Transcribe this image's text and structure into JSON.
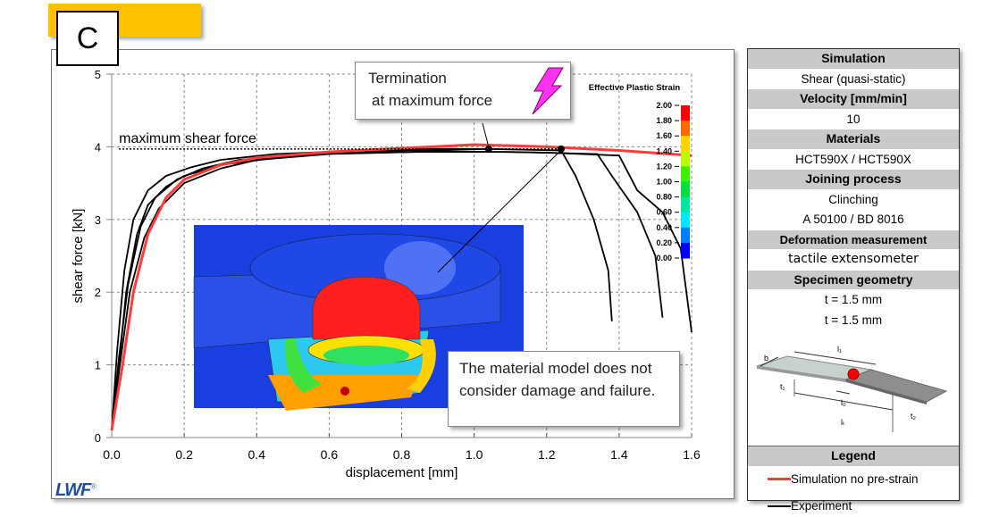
{
  "panel_label": "C",
  "callouts": {
    "termination_line1": "Termination",
    "termination_line2": "at maximum force",
    "material_note": "The material model does not consider damage and failure."
  },
  "logo_text": "LWF",
  "logo_mark": "®",
  "colorbar": {
    "title": "Effective Plastic Strain",
    "ticks": [
      "2.00",
      "1.80",
      "1.60",
      "1.40",
      "1.20",
      "1.00",
      "0.80",
      "0.60",
      "0.40",
      "0.20",
      "0.00"
    ],
    "colors": [
      "#ff0000",
      "#ff6a00",
      "#ffd400",
      "#b8ff00",
      "#3cf000",
      "#00e040",
      "#00e8a0",
      "#00e8ff",
      "#0080ff",
      "#0000ff"
    ]
  },
  "info_panel": {
    "simulation_header": "Simulation",
    "simulation_value": "Shear (quasi-static)",
    "velocity_header": "Velocity  [mm/min]",
    "velocity_value": "10",
    "materials_header": "Materials",
    "materials_value": "HCT590X / HCT590X",
    "joining_header": "Joining process",
    "joining_value1": "Clinching",
    "joining_value2": "A 50100 / BD 8016",
    "deformation_header": "Deformation measurement",
    "deformation_value": "tactile extensometer",
    "geometry_header": "Specimen geometry",
    "geometry_value1": "t = 1.5 mm",
    "geometry_value2": "t = 1.5 mm",
    "geometry_labels": {
      "b": "b",
      "l1": "l₁",
      "l0": "l₀",
      "lt": "lₜ",
      "t1": "t₁",
      "t2": "t₂"
    },
    "legend_header": "Legend",
    "legend_items": [
      {
        "label": "Simulation no pre-strain",
        "color": "#ff3b3b"
      },
      {
        "label": "Experiment",
        "color": "#000000"
      }
    ]
  },
  "chart_data": {
    "type": "line",
    "title": "",
    "xlabel": "displacement [mm]",
    "ylabel": "shear force [kN]",
    "xlim": [
      0,
      1.6
    ],
    "ylim": [
      0,
      5
    ],
    "xticks": [
      "0.0",
      "0.2",
      "0.4",
      "0.6",
      "0.8",
      "1.0",
      "1.2",
      "1.4",
      "1.6"
    ],
    "yticks": [
      "0",
      "1",
      "2",
      "3",
      "4",
      "5"
    ],
    "grid": true,
    "annotation_max_force": {
      "label": "maximum shear force",
      "y": 3.97,
      "x_range": [
        0.02,
        1.24
      ]
    },
    "markers": [
      {
        "x": 1.04,
        "y": 3.97
      },
      {
        "x": 1.24,
        "y": 3.97
      }
    ],
    "series": [
      {
        "name": "Simulation no pre-strain",
        "color": "#ff3b3b",
        "x": [
          0,
          0.03,
          0.06,
          0.1,
          0.15,
          0.2,
          0.3,
          0.4,
          0.6,
          0.8,
          1.0,
          1.2,
          1.4,
          1.6
        ],
        "y": [
          0.1,
          1.0,
          2.0,
          2.8,
          3.3,
          3.55,
          3.75,
          3.85,
          3.93,
          3.98,
          4.03,
          4.0,
          3.95,
          3.88
        ]
      },
      {
        "name": "Experiment",
        "color": "#000000",
        "x": [
          0,
          0.02,
          0.04,
          0.07,
          0.1,
          0.15,
          0.2,
          0.3,
          0.5,
          0.8,
          1.04,
          1.24,
          1.28,
          1.33,
          1.37,
          1.38
        ],
        "y": [
          0.1,
          1.0,
          2.0,
          2.8,
          3.2,
          3.45,
          3.6,
          3.75,
          3.88,
          3.95,
          3.97,
          3.95,
          3.6,
          3.0,
          2.3,
          1.6
        ]
      },
      {
        "name": "Experiment",
        "color": "#000000",
        "x": [
          0,
          0.02,
          0.045,
          0.08,
          0.12,
          0.18,
          0.25,
          0.35,
          0.55,
          0.85,
          1.1,
          1.34,
          1.38,
          1.45,
          1.5,
          1.52
        ],
        "y": [
          0.1,
          1.1,
          2.1,
          2.9,
          3.3,
          3.55,
          3.7,
          3.82,
          3.9,
          3.93,
          3.93,
          3.9,
          3.6,
          3.1,
          2.5,
          1.65
        ]
      },
      {
        "name": "Experiment",
        "color": "#000000",
        "x": [
          0,
          0.02,
          0.05,
          0.09,
          0.13,
          0.2,
          0.3,
          0.4,
          0.6,
          0.9,
          1.2,
          1.4,
          1.45,
          1.52,
          1.57,
          1.6
        ],
        "y": [
          0.1,
          0.9,
          2.0,
          2.75,
          3.15,
          3.5,
          3.7,
          3.82,
          3.9,
          3.94,
          3.92,
          3.88,
          3.4,
          3.1,
          2.6,
          1.45
        ]
      },
      {
        "name": "Experiment",
        "color": "#000000",
        "x": [
          0,
          0.015,
          0.035,
          0.06,
          0.1,
          0.15,
          0.22,
          0.3,
          0.45,
          0.7,
          0.9,
          1.05
        ],
        "y": [
          0.1,
          1.2,
          2.3,
          3.0,
          3.4,
          3.6,
          3.72,
          3.82,
          3.9,
          3.95,
          3.97,
          3.97
        ]
      }
    ]
  }
}
